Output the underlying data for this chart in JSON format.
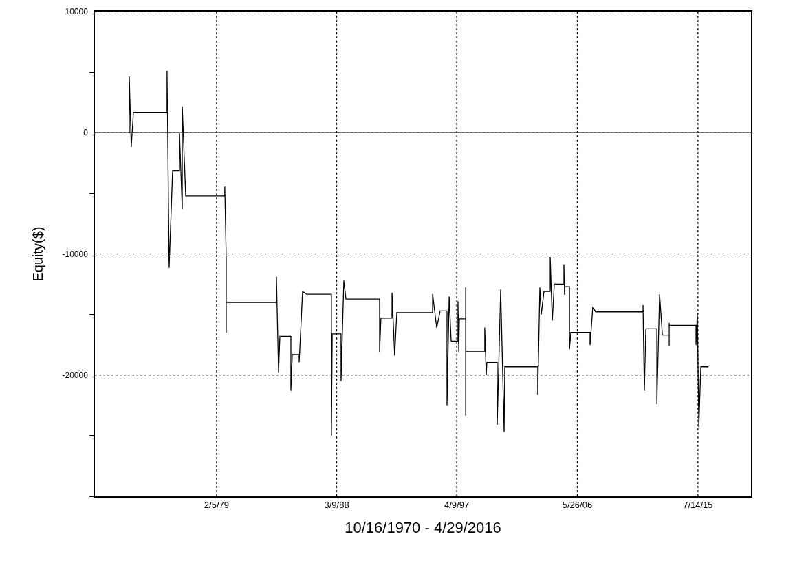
{
  "chart_data": {
    "type": "line",
    "xlabel": "10/16/1970 - 4/29/2016",
    "ylabel": "Equity($)",
    "xlim": [
      "1969-11-20",
      "2019-07-19"
    ],
    "ylim": [
      -30000,
      10000
    ],
    "xticks": [
      {
        "value": "1979-02-05",
        "label": "2/5/79"
      },
      {
        "value": "1988-03-09",
        "label": "3/9/88"
      },
      {
        "value": "1997-04-09",
        "label": "4/9/97"
      },
      {
        "value": "2006-05-26",
        "label": "5/26/06"
      },
      {
        "value": "2015-07-14",
        "label": "7/14/15"
      }
    ],
    "yticks": [
      10000,
      {
        "value": 5000,
        "label": null
      },
      0,
      {
        "value": -5000,
        "label": null
      },
      -10000,
      {
        "value": -15000,
        "label": null
      },
      -20000,
      {
        "value": -25000,
        "label": null
      },
      {
        "value": -30000,
        "label": null
      }
    ],
    "grid": true,
    "marker": "none",
    "line_style": "solid",
    "ref_lines": [
      {
        "axis": "y",
        "value": 0,
        "label": null,
        "color": "#000000",
        "line_style": "solid"
      }
    ],
    "series": [
      {
        "color": "#000000",
        "x": [
          "1972-06-27",
          "1972-06-27",
          "1972-08-21",
          "1972-10-19",
          "1975-05-07",
          "1975-05-07",
          "1975-07-04",
          "1975-10-08",
          "1976-04-15",
          "1976-04-15",
          "1976-07-01",
          "1976-07-01",
          "1976-10-04",
          "1979-09-20",
          "1979-09-20",
          "1979-10-29",
          "1979-10-29",
          "1979-10-29",
          "1983-08-17",
          "1983-08-17",
          "1983-10-15",
          "1983-11-21",
          "1984-09-20",
          "1984-09-20",
          "1984-10-29",
          "1985-05-07",
          "1985-05-07",
          "1985-08-10",
          "1985-12-02",
          "1987-10-15",
          "1987-10-15",
          "1987-11-07",
          "1988-07-08",
          "1988-07-08",
          "1988-09-23",
          "1988-11-21",
          "1991-06-09",
          "1991-06-09",
          "1991-07-15",
          "1992-05-17",
          "1992-05-17",
          "1992-07-29",
          "1992-09-27",
          "1995-06-13",
          "1995-06-13",
          "1995-10-04",
          "1996-01-08",
          "1996-07-15",
          "1996-07-15",
          "1996-09-13",
          "1996-11-07",
          "1997-05-14",
          "1997-05-14",
          "1997-06-05",
          "1997-06-23",
          "1997-12-13",
          "1997-12-13",
          "1997-12-13",
          "1997-12-13",
          "1999-05-25",
          "1999-05-25",
          "1999-07-04",
          "1999-07-22",
          "2000-05-03",
          "2000-05-03",
          "2000-08-07",
          "2000-11-10",
          "2000-11-28",
          "2003-05-28",
          "2003-05-28",
          "2003-07-26",
          "2003-09-02",
          "2003-11-17",
          "2004-05-07",
          "2004-05-07",
          "2004-07-04",
          "2004-08-28",
          "2005-05-21",
          "2005-05-21",
          "2005-06-09",
          "2005-06-09",
          "2005-10-22",
          "2005-10-22",
          "2005-11-28",
          "2007-05-14",
          "2007-05-14",
          "2007-07-29",
          "2007-10-15",
          "2011-05-17",
          "2011-05-17",
          "2011-06-23",
          "2011-08-03",
          "2012-06-02",
          "2012-06-02",
          "2012-08-17",
          "2012-11-03",
          "2013-05-10",
          "2013-05-10",
          "2013-05-10",
          "2013-05-10",
          "2015-05-21",
          "2015-05-21",
          "2015-06-27",
          "2015-08-07",
          "2015-10-01",
          "2016-04-26"
        ],
        "values": [
          0,
          4650,
          -1180,
          1680,
          1680,
          5100,
          -11150,
          -3140,
          -3140,
          0,
          -6300,
          2180,
          -5200,
          -5200,
          -4430,
          -10300,
          -16500,
          -14000,
          -14000,
          -11870,
          -19770,
          -16800,
          -16800,
          -21300,
          -18300,
          -18300,
          -18950,
          -13100,
          -13330,
          -13330,
          -25000,
          -16600,
          -16600,
          -20500,
          -12200,
          -13720,
          -13720,
          -18100,
          -15300,
          -15300,
          -13200,
          -18400,
          -14850,
          -14850,
          -13300,
          -16100,
          -14700,
          -14700,
          -22500,
          -13500,
          -17200,
          -17200,
          -13900,
          -18100,
          -15350,
          -15350,
          -12770,
          -23350,
          -18030,
          -18030,
          -16070,
          -20000,
          -18950,
          -18950,
          -24100,
          -12940,
          -24700,
          -19320,
          -19320,
          -21600,
          -12770,
          -15000,
          -13100,
          -13100,
          -10250,
          -15500,
          -12490,
          -12490,
          -10870,
          -13380,
          -12700,
          -12700,
          -17870,
          -16470,
          -16470,
          -17530,
          -14340,
          -14780,
          -14780,
          -14220,
          -21300,
          -16180,
          -16180,
          -22400,
          -13330,
          -16700,
          -16700,
          -15700,
          -17600,
          -15900,
          -15900,
          -17530,
          -14850,
          -24300,
          -19320,
          -19320
        ]
      }
    ]
  }
}
